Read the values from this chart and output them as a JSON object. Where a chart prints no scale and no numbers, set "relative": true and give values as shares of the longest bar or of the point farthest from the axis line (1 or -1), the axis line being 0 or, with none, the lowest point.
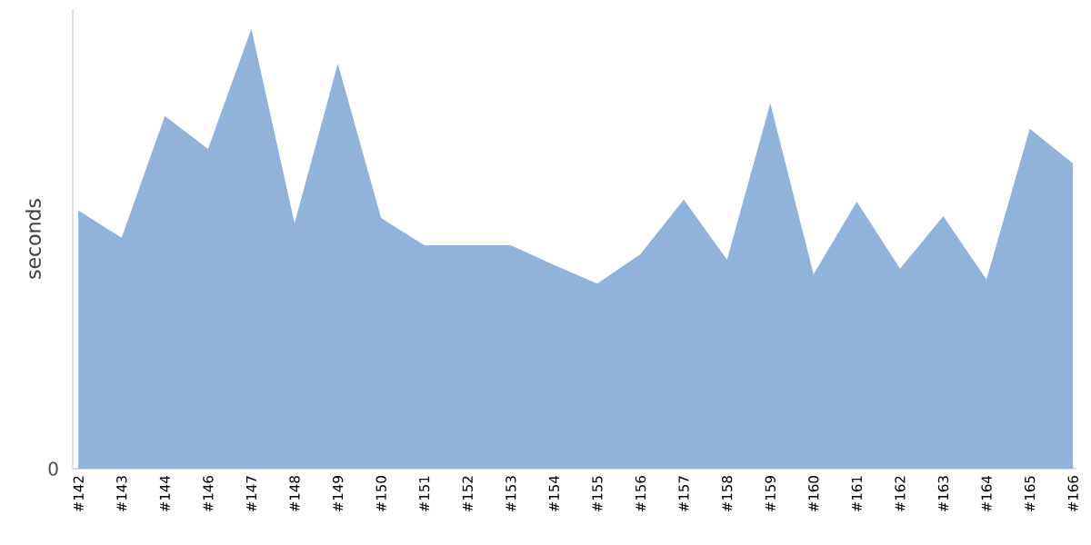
{
  "chart_data": {
    "type": "area",
    "ylabel": "seconds",
    "relative": true,
    "grid": false,
    "categories": [
      "#142",
      "#143",
      "#144",
      "#146",
      "#147",
      "#148",
      "#149",
      "#150",
      "#151",
      "#152",
      "#153",
      "#154",
      "#155",
      "#156",
      "#157",
      "#158",
      "#159",
      "#160",
      "#161",
      "#162",
      "#163",
      "#164",
      "#165",
      "#166"
    ],
    "series": [
      {
        "color": "#90b2db",
        "values": [
          0.587,
          0.525,
          0.802,
          0.727,
          1,
          0.558,
          0.921,
          0.57,
          0.508,
          0.508,
          0.508,
          0.463,
          0.421,
          0.488,
          0.612,
          0.475,
          0.831,
          0.442,
          0.607,
          0.455,
          0.574,
          0.43,
          0.773,
          0.694
        ]
      }
    ],
    "annotations": [
      "0"
    ]
  }
}
